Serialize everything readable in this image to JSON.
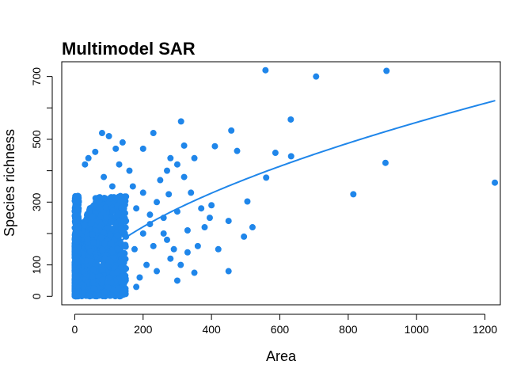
{
  "chart_data": {
    "type": "scatter",
    "title": "Multimodel SAR",
    "xlabel": "Area",
    "ylabel": "Species richness",
    "xlim": [
      -38,
      1245
    ],
    "ylim": [
      -27,
      747
    ],
    "x_ticks": [
      0,
      200,
      400,
      600,
      800,
      1000,
      1200
    ],
    "x_tick_labels": [
      "0",
      "200",
      "400",
      "600",
      "800",
      "1000",
      "1200"
    ],
    "y_ticks": [
      0,
      100,
      200,
      300,
      400,
      500,
      600,
      700
    ],
    "y_tick_labels": [
      "0",
      "100",
      "",
      "300",
      "",
      "500",
      "",
      "700"
    ],
    "grid": false,
    "legend": "none",
    "point_color": "#1F86EA",
    "fit_line_color": "#1F86EA",
    "dense_cluster": {
      "x_range": [
        0,
        150
      ],
      "y_range": [
        0,
        320
      ],
      "note": "dense overplotted mass of points near the origin"
    },
    "points": [
      [
        558,
        720
      ],
      [
        706,
        700
      ],
      [
        912,
        718
      ],
      [
        632,
        563
      ],
      [
        311,
        557
      ],
      [
        458,
        528
      ],
      [
        587,
        457
      ],
      [
        633,
        446
      ],
      [
        410,
        478
      ],
      [
        475,
        463
      ],
      [
        909,
        425
      ],
      [
        815,
        325
      ],
      [
        1229,
        362
      ],
      [
        505,
        302
      ],
      [
        560,
        378
      ],
      [
        400,
        290
      ],
      [
        450,
        240
      ],
      [
        520,
        220
      ],
      [
        380,
        220
      ],
      [
        495,
        190
      ],
      [
        450,
        80
      ],
      [
        420,
        150
      ],
      [
        360,
        160
      ],
      [
        330,
        140
      ],
      [
        310,
        100
      ],
      [
        300,
        50
      ],
      [
        350,
        75
      ],
      [
        280,
        120
      ],
      [
        270,
        180
      ],
      [
        330,
        210
      ],
      [
        250,
        370
      ],
      [
        300,
        420
      ],
      [
        280,
        440
      ],
      [
        230,
        520
      ],
      [
        200,
        470
      ],
      [
        320,
        480
      ],
      [
        350,
        440
      ],
      [
        270,
        400
      ],
      [
        320,
        380
      ],
      [
        240,
        300
      ],
      [
        200,
        330
      ],
      [
        180,
        280
      ],
      [
        220,
        260
      ],
      [
        260,
        250
      ],
      [
        300,
        270
      ],
      [
        200,
        200
      ],
      [
        220,
        230
      ],
      [
        260,
        200
      ],
      [
        290,
        150
      ],
      [
        150,
        240
      ],
      [
        170,
        350
      ],
      [
        160,
        400
      ],
      [
        130,
        420
      ],
      [
        120,
        470
      ],
      [
        140,
        490
      ],
      [
        100,
        510
      ],
      [
        80,
        520
      ],
      [
        60,
        460
      ],
      [
        40,
        440
      ],
      [
        30,
        420
      ],
      [
        85,
        380
      ],
      [
        110,
        350
      ],
      [
        150,
        190
      ],
      [
        175,
        150
      ],
      [
        190,
        60
      ],
      [
        180,
        30
      ],
      [
        240,
        80
      ],
      [
        210,
        100
      ],
      [
        230,
        160
      ],
      [
        275,
        325
      ],
      [
        340,
        330
      ],
      [
        370,
        280
      ],
      [
        395,
        250
      ]
    ],
    "fit_curve": {
      "type": "power",
      "a": 10.8,
      "b": 0.57,
      "x_range": [
        0,
        1230
      ]
    }
  }
}
